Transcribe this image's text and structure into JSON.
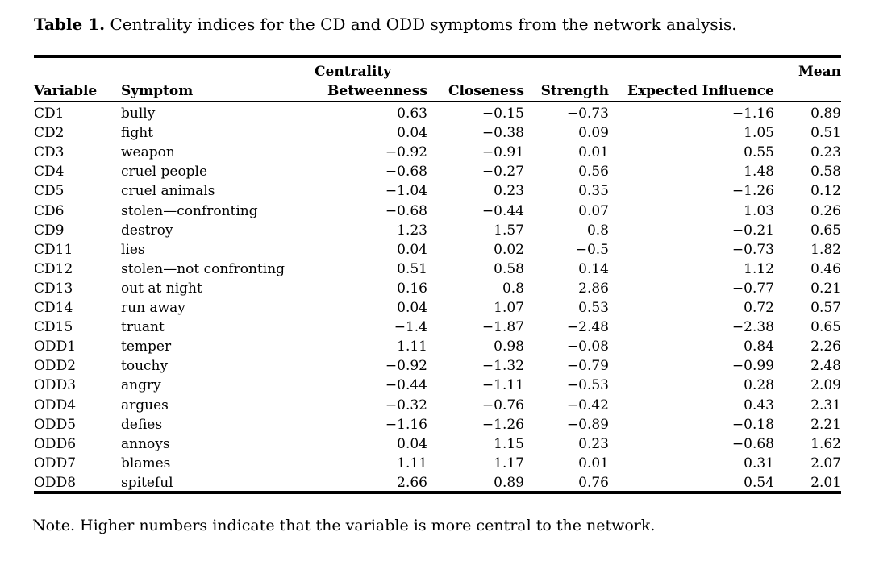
{
  "title": {
    "label": "Table 1.",
    "text": "Centrality indices for the CD and ODD symptoms from the network analysis."
  },
  "table": {
    "group_header": {
      "centrality": "Centrality",
      "mean": "Mean"
    },
    "columns": [
      "Variable",
      "Symptom",
      "Betweenness",
      "Closeness",
      "Strength",
      "Expected Influence"
    ],
    "rows": [
      [
        "CD1",
        "bully",
        "0.63",
        "−0.15",
        "−0.73",
        "−1.16",
        "0.89"
      ],
      [
        "CD2",
        "fight",
        "0.04",
        "−0.38",
        "0.09",
        "1.05",
        "0.51"
      ],
      [
        "CD3",
        "weapon",
        "−0.92",
        "−0.91",
        "0.01",
        "0.55",
        "0.23"
      ],
      [
        "CD4",
        "cruel people",
        "−0.68",
        "−0.27",
        "0.56",
        "1.48",
        "0.58"
      ],
      [
        "CD5",
        "cruel animals",
        "−1.04",
        "0.23",
        "0.35",
        "−1.26",
        "0.12"
      ],
      [
        "CD6",
        "stolen—confronting",
        "−0.68",
        "−0.44",
        "0.07",
        "1.03",
        "0.26"
      ],
      [
        "CD9",
        "destroy",
        "1.23",
        "1.57",
        "0.8",
        "−0.21",
        "0.65"
      ],
      [
        "CD11",
        "lies",
        "0.04",
        "0.02",
        "−0.5",
        "−0.73",
        "1.82"
      ],
      [
        "CD12",
        "stolen—not confronting",
        "0.51",
        "0.58",
        "0.14",
        "1.12",
        "0.46"
      ],
      [
        "CD13",
        "out at night",
        "0.16",
        "0.8",
        "2.86",
        "−0.77",
        "0.21"
      ],
      [
        "CD14",
        "run away",
        "0.04",
        "1.07",
        "0.53",
        "0.72",
        "0.57"
      ],
      [
        "CD15",
        "truant",
        "−1.4",
        "−1.87",
        "−2.48",
        "−2.38",
        "0.65"
      ],
      [
        "ODD1",
        "temper",
        "1.11",
        "0.98",
        "−0.08",
        "0.84",
        "2.26"
      ],
      [
        "ODD2",
        "touchy",
        "−0.92",
        "−1.32",
        "−0.79",
        "−0.99",
        "2.48"
      ],
      [
        "ODD3",
        "angry",
        "−0.44",
        "−1.11",
        "−0.53",
        "0.28",
        "2.09"
      ],
      [
        "ODD4",
        "argues",
        "−0.32",
        "−0.76",
        "−0.42",
        "0.43",
        "2.31"
      ],
      [
        "ODD5",
        "defies",
        "−1.16",
        "−1.26",
        "−0.89",
        "−0.18",
        "2.21"
      ],
      [
        "ODD6",
        "annoys",
        "0.04",
        "1.15",
        "0.23",
        "−0.68",
        "1.62"
      ],
      [
        "ODD7",
        "blames",
        "1.11",
        "1.17",
        "0.01",
        "0.31",
        "2.07"
      ],
      [
        "ODD8",
        "spiteful",
        "2.66",
        "0.89",
        "0.76",
        "0.54",
        "2.01"
      ]
    ]
  },
  "note": "Note. Higher numbers indicate that the variable is more central to the network."
}
